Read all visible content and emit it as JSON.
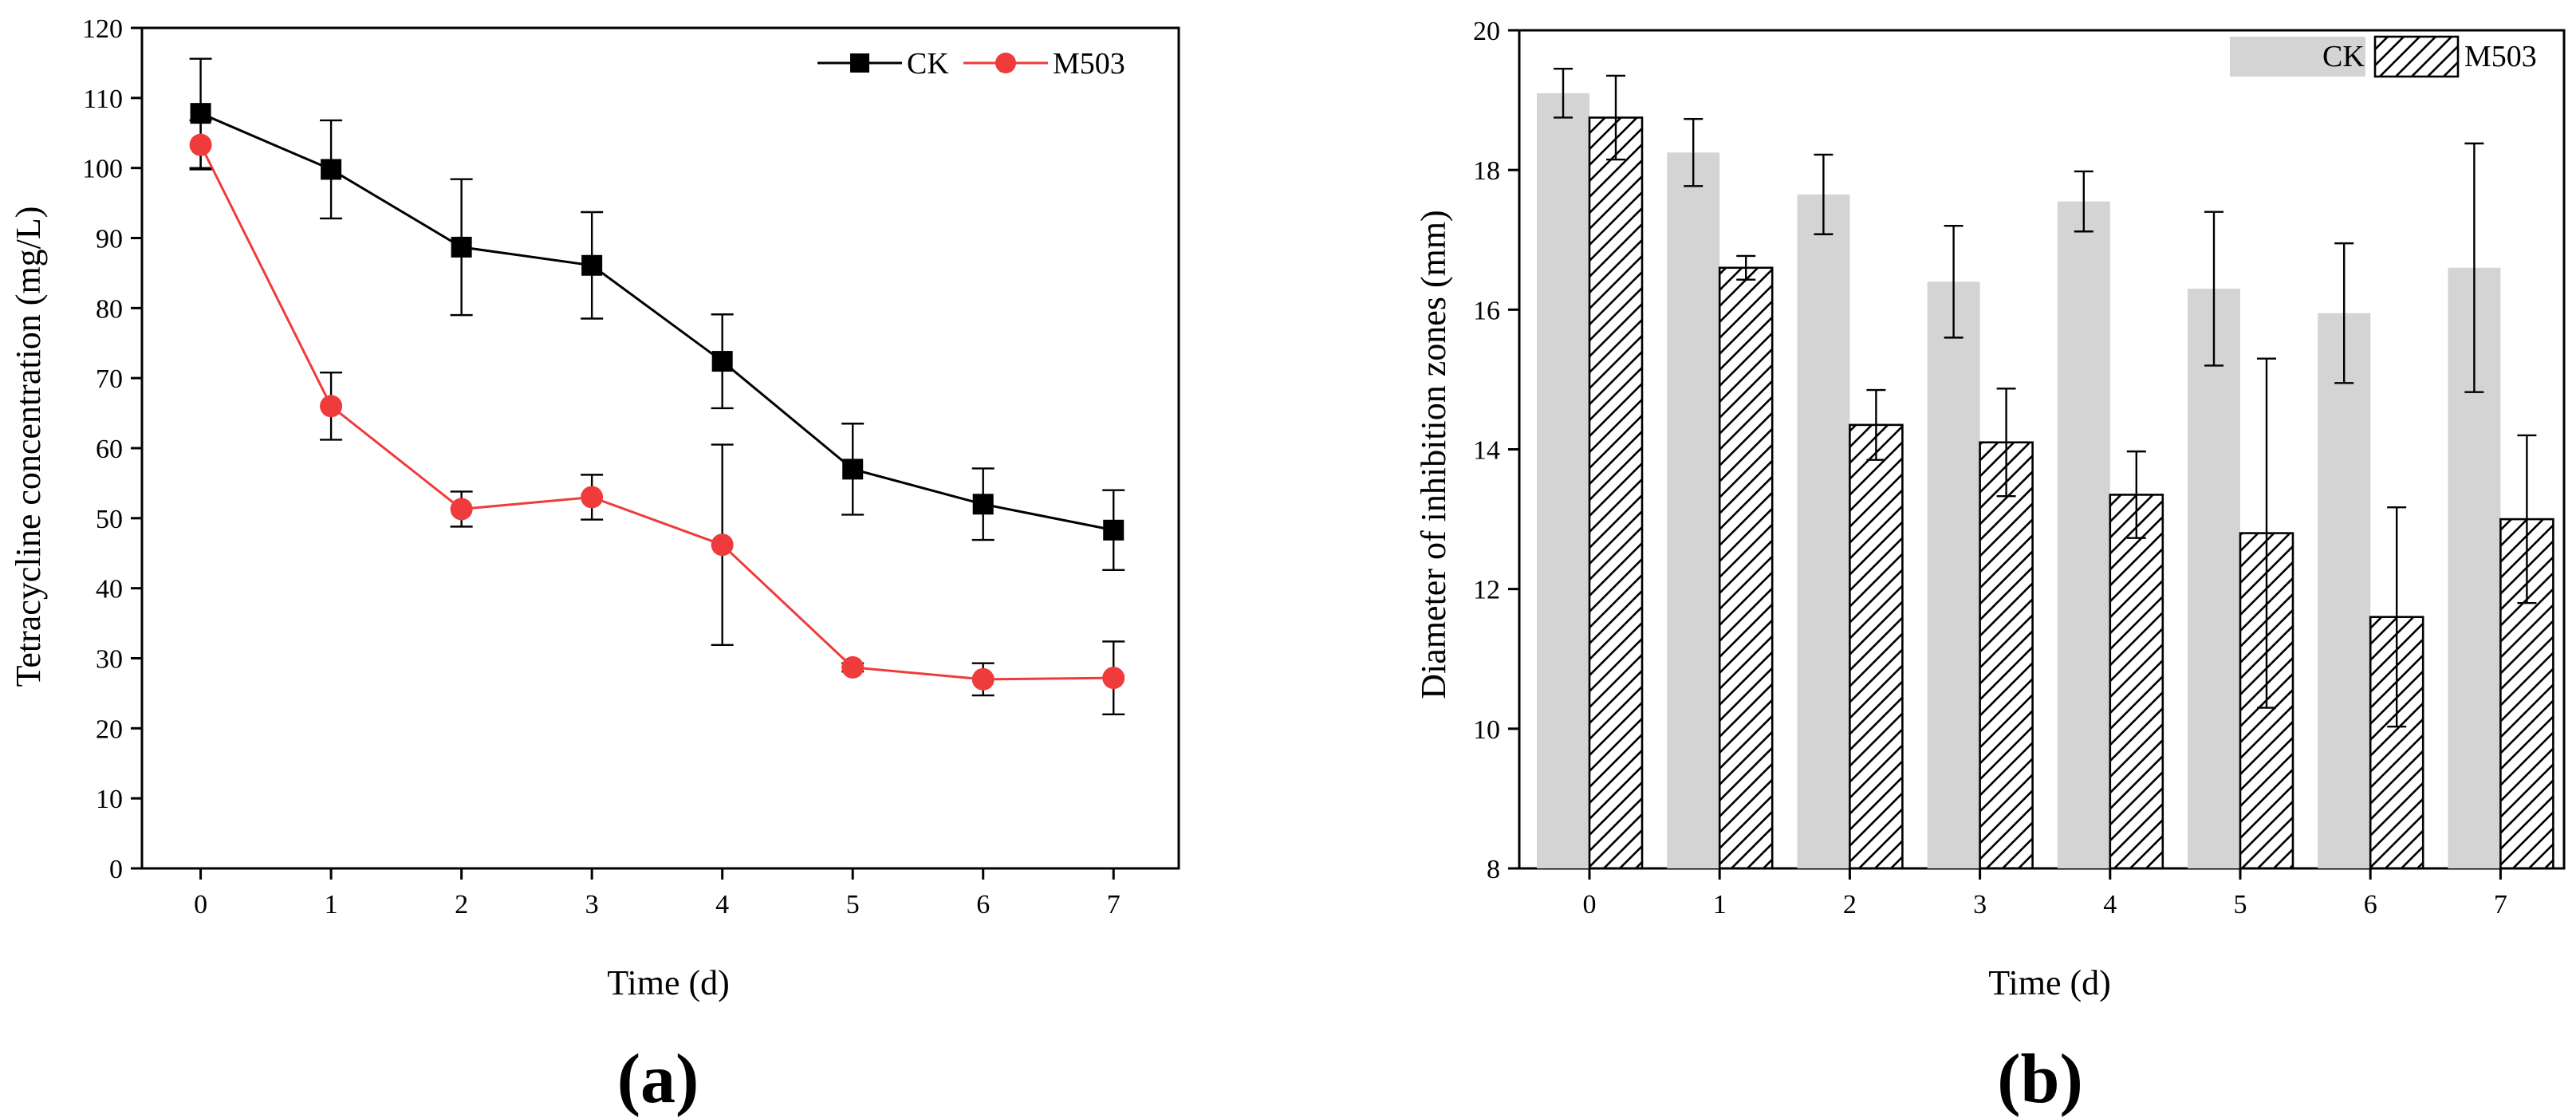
{
  "chart_data": [
    {
      "type": "line",
      "panel_label": "(a)",
      "xlabel": "Time (d)",
      "ylabel": "Tetracycline concentration (mg/L)",
      "x": [
        0,
        1,
        2,
        3,
        4,
        5,
        6,
        7
      ],
      "xlim": [
        -0.45,
        7.5
      ],
      "ylim": [
        0,
        120
      ],
      "yticks": [
        0,
        10,
        20,
        30,
        40,
        50,
        60,
        70,
        80,
        90,
        100,
        110,
        120
      ],
      "legend_position": "top-right",
      "series": [
        {
          "name": "CK",
          "color": "#000000",
          "marker": "square",
          "values": [
            107.8,
            99.8,
            88.7,
            86.1,
            72.4,
            57.0,
            52.0,
            48.3
          ],
          "errors": [
            7.8,
            7.0,
            9.7,
            7.6,
            6.7,
            6.5,
            5.1,
            5.7
          ]
        },
        {
          "name": "M503",
          "color": "#ef3b3b",
          "marker": "circle",
          "values": [
            103.3,
            66.0,
            51.3,
            53.0,
            46.2,
            28.7,
            27.0,
            27.2
          ],
          "errors": [
            3.5,
            4.8,
            2.5,
            3.2,
            14.3,
            0.6,
            2.3,
            5.2
          ]
        }
      ]
    },
    {
      "type": "bar",
      "panel_label": "(b)",
      "xlabel": "Time (d)",
      "ylabel": "Diameter of inhibition zones (mm)",
      "categories": [
        "0",
        "1",
        "2",
        "3",
        "4",
        "5",
        "6",
        "7"
      ],
      "ylim": [
        8,
        20
      ],
      "yticks": [
        8,
        10,
        12,
        14,
        16,
        18,
        20
      ],
      "legend_position": "top-right",
      "series": [
        {
          "name": "CK",
          "fill": "#d4d4d4",
          "pattern": "solid",
          "values": [
            19.1,
            18.25,
            17.65,
            16.4,
            17.55,
            16.3,
            15.95,
            16.6
          ],
          "errors": [
            0.35,
            0.48,
            0.57,
            0.8,
            0.43,
            1.1,
            1.0,
            1.78
          ]
        },
        {
          "name": "M503",
          "fill": "#ffffff",
          "pattern": "hatch",
          "values": [
            18.75,
            16.6,
            14.35,
            14.1,
            13.35,
            12.8,
            11.6,
            13.0
          ],
          "errors": [
            0.6,
            0.17,
            0.5,
            0.77,
            0.62,
            2.5,
            1.57,
            1.2
          ]
        }
      ]
    }
  ]
}
